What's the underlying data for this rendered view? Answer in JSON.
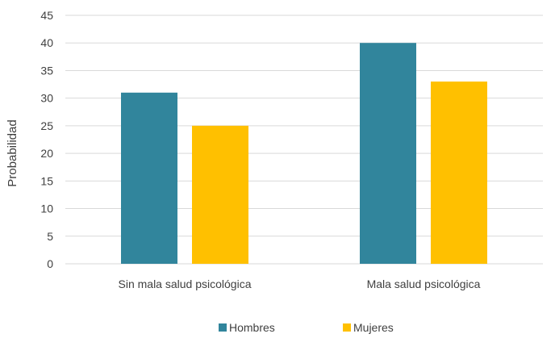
{
  "chart_data": {
    "type": "bar",
    "title": "",
    "xlabel": "",
    "ylabel": "Probabilidad",
    "categories": [
      "Sin mala salud psicológica",
      "Mala salud psicológica"
    ],
    "series": [
      {
        "name": "Hombres",
        "values": [
          31,
          40
        ],
        "color": "#31859C"
      },
      {
        "name": "Mujeres",
        "values": [
          25,
          33
        ],
        "color": "#FFC000"
      }
    ],
    "ylim": [
      0,
      45
    ],
    "yticks": [
      0,
      5,
      10,
      15,
      20,
      25,
      30,
      35,
      40,
      45
    ],
    "grid": true,
    "legend": "bottom"
  },
  "colors": {
    "gridline": "#d9d9d9",
    "text": "#404040"
  }
}
